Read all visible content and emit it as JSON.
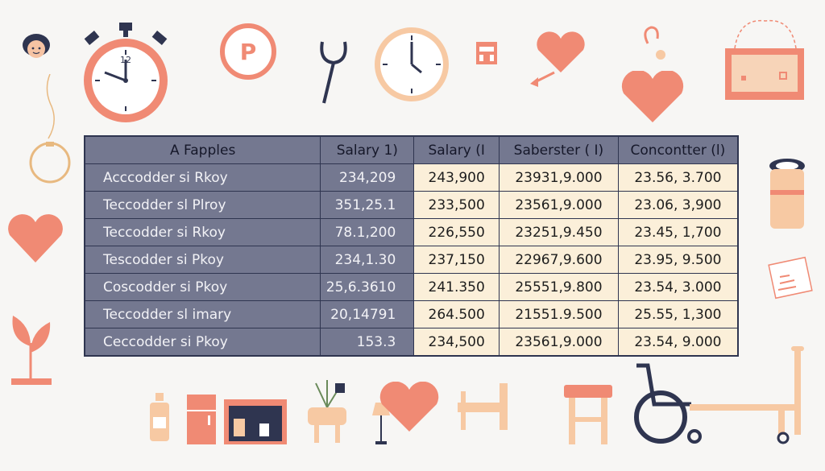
{
  "colors": {
    "accent": "#f08a74",
    "peach": "#f7c9a3",
    "navy": "#2f3550",
    "header": "#747890",
    "cell": "#fbefd9"
  },
  "decor": {
    "left": [
      "avatar-icon",
      "necklace-icon",
      "heart-icon",
      "sprout-icon"
    ],
    "top": [
      "stopwatch-icon",
      "parking-sign-icon",
      "stethoscope-icon",
      "wall-clock-icon",
      "pill-box-icon",
      "heart-with-arrow-icon",
      "ribbon-icon",
      "heart-icon",
      "cabinet-icon"
    ],
    "right": [
      "jar-icon",
      "note-icon"
    ],
    "bottom": [
      "bottle-icon",
      "refrigerator-icon",
      "shelf-icon",
      "plant-pot-icon",
      "lamp-icon",
      "heart-icon",
      "chair-icon",
      "stool-icon",
      "wheelchair-icon",
      "bed-icon"
    ],
    "parking_letter": "P",
    "clock_number": "12"
  },
  "table": {
    "headers": [
      "A Fapples",
      "Salary 1)",
      "Salary (I",
      "Saberster ( I)",
      "Concontter (l)"
    ],
    "rows": [
      [
        "Acccodder si Rkoy",
        "234,209",
        "243,900",
        "23931,9.000",
        "23.56, 3.700"
      ],
      [
        "Teccodder sl Plroy",
        "351,25.1",
        "233,500",
        "23561,9.000",
        "23.06, 3,900"
      ],
      [
        "Teccodder si Rkoy",
        "78.1,200",
        "226,550",
        "23251,9.450",
        "23.45, 1,700"
      ],
      [
        "Tescodder si Pkoy",
        "234,1.30",
        "237,150",
        "22967,9.600",
        "23.95, 9.500"
      ],
      [
        "Coscodder si Pkoy",
        "25,6.3610",
        "241.350",
        "25551,9.800",
        "23.54, 3.000"
      ],
      [
        "Teccodder sl imary",
        "20,14791",
        "264.500",
        "21551.9.500",
        "25.55, 1,300"
      ],
      [
        "Ceccodder si Pkoy",
        "153.3",
        "234,500",
        "23561,9.000",
        "23.54, 9.000"
      ]
    ]
  }
}
